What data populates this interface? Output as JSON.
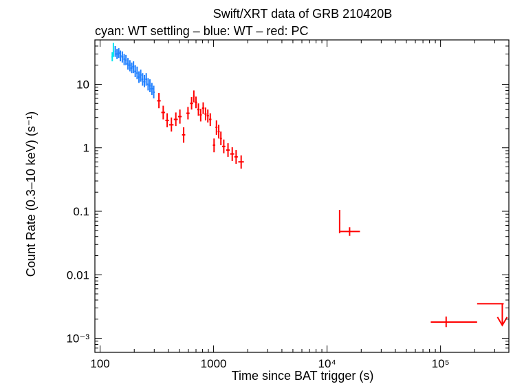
{
  "chart_data": {
    "type": "scatter",
    "title": "Swift/XRT data of GRB 210420B",
    "subtitle": "cyan: WT settling – blue: WT – red: PC",
    "xlabel": "Time since BAT trigger (s)",
    "ylabel": "Count Rate (0.3–10 keV) (s⁻¹)",
    "xscale": "log",
    "yscale": "log",
    "xlim": [
      90,
      400000
    ],
    "ylim": [
      0.0006,
      50
    ],
    "grid": false,
    "x_ticks": [
      {
        "value": 100,
        "label": "100"
      },
      {
        "value": 1000,
        "label": "1000"
      },
      {
        "value": 10000,
        "label": "10⁴"
      },
      {
        "value": 100000,
        "label": "10⁵"
      }
    ],
    "y_ticks": [
      {
        "value": 10,
        "label": "10"
      },
      {
        "value": 1,
        "label": "1"
      },
      {
        "value": 0.1,
        "label": "0.1"
      },
      {
        "value": 0.01,
        "label": "0.01"
      },
      {
        "value": 0.001,
        "label": "10⁻³"
      }
    ],
    "series": [
      {
        "name": "WT settling",
        "color": "#00e5ee",
        "points": [
          {
            "x": 128,
            "y": 27,
            "xlo": 126,
            "xhi": 130,
            "ylo": 23,
            "yhi": 32
          },
          {
            "x": 131,
            "y": 33,
            "xlo": 130,
            "xhi": 133,
            "ylo": 27,
            "yhi": 45
          }
        ]
      },
      {
        "name": "WT",
        "color": "#1e7fff",
        "points": [
          {
            "x": 136,
            "y": 33,
            "xlo": 134,
            "xhi": 138,
            "ylo": 27,
            "yhi": 40
          },
          {
            "x": 141,
            "y": 30,
            "xlo": 138,
            "xhi": 144,
            "ylo": 25,
            "yhi": 36
          },
          {
            "x": 146,
            "y": 31,
            "xlo": 144,
            "xhi": 149,
            "ylo": 26,
            "yhi": 37
          },
          {
            "x": 151,
            "y": 28,
            "xlo": 149,
            "xhi": 154,
            "ylo": 23,
            "yhi": 34
          },
          {
            "x": 157,
            "y": 27,
            "xlo": 154,
            "xhi": 160,
            "ylo": 22,
            "yhi": 33
          },
          {
            "x": 163,
            "y": 25,
            "xlo": 160,
            "xhi": 166,
            "ylo": 20,
            "yhi": 30
          },
          {
            "x": 169,
            "y": 24,
            "xlo": 166,
            "xhi": 172,
            "ylo": 20,
            "yhi": 29
          },
          {
            "x": 176,
            "y": 21,
            "xlo": 172,
            "xhi": 179,
            "ylo": 17,
            "yhi": 26
          },
          {
            "x": 183,
            "y": 20,
            "xlo": 179,
            "xhi": 186,
            "ylo": 16,
            "yhi": 24
          },
          {
            "x": 190,
            "y": 18,
            "xlo": 186,
            "xhi": 193,
            "ylo": 15,
            "yhi": 22
          },
          {
            "x": 197,
            "y": 19,
            "xlo": 193,
            "xhi": 200,
            "ylo": 15,
            "yhi": 23
          },
          {
            "x": 204,
            "y": 16,
            "xlo": 200,
            "xhi": 208,
            "ylo": 13,
            "yhi": 20
          },
          {
            "x": 212,
            "y": 15,
            "xlo": 208,
            "xhi": 216,
            "ylo": 12,
            "yhi": 19
          },
          {
            "x": 220,
            "y": 13,
            "xlo": 216,
            "xhi": 224,
            "ylo": 10.5,
            "yhi": 16
          },
          {
            "x": 228,
            "y": 14,
            "xlo": 224,
            "xhi": 232,
            "ylo": 11,
            "yhi": 17
          },
          {
            "x": 237,
            "y": 12,
            "xlo": 232,
            "xhi": 241,
            "ylo": 9.5,
            "yhi": 15
          },
          {
            "x": 246,
            "y": 11,
            "xlo": 241,
            "xhi": 250,
            "ylo": 9,
            "yhi": 14
          },
          {
            "x": 255,
            "y": 12,
            "xlo": 250,
            "xhi": 260,
            "ylo": 9.5,
            "yhi": 15
          },
          {
            "x": 265,
            "y": 10,
            "xlo": 260,
            "xhi": 270,
            "ylo": 8,
            "yhi": 12.5
          },
          {
            "x": 275,
            "y": 9.5,
            "xlo": 270,
            "xhi": 280,
            "ylo": 7.5,
            "yhi": 12
          },
          {
            "x": 286,
            "y": 8.5,
            "xlo": 280,
            "xhi": 292,
            "ylo": 6.8,
            "yhi": 10.5
          },
          {
            "x": 297,
            "y": 7.5,
            "xlo": 292,
            "xhi": 303,
            "ylo": 6,
            "yhi": 9.5
          }
        ]
      },
      {
        "name": "PC",
        "color": "#ff0000",
        "points": [
          {
            "x": 330,
            "y": 5.5,
            "xlo": 318,
            "xhi": 342,
            "ylo": 4.2,
            "yhi": 7.3
          },
          {
            "x": 360,
            "y": 3.6,
            "xlo": 346,
            "xhi": 374,
            "ylo": 2.8,
            "yhi": 4.6
          },
          {
            "x": 390,
            "y": 2.7,
            "xlo": 376,
            "xhi": 404,
            "ylo": 2.1,
            "yhi": 3.5
          },
          {
            "x": 425,
            "y": 2.3,
            "xlo": 406,
            "xhi": 444,
            "ylo": 1.8,
            "yhi": 3.0
          },
          {
            "x": 465,
            "y": 2.8,
            "xlo": 446,
            "xhi": 484,
            "ylo": 2.2,
            "yhi": 3.6
          },
          {
            "x": 505,
            "y": 3.1,
            "xlo": 486,
            "xhi": 524,
            "ylo": 2.4,
            "yhi": 4.0
          },
          {
            "x": 545,
            "y": 1.6,
            "xlo": 527,
            "xhi": 563,
            "ylo": 1.2,
            "yhi": 2.1
          },
          {
            "x": 595,
            "y": 3.5,
            "xlo": 575,
            "xhi": 615,
            "ylo": 2.8,
            "yhi": 4.4
          },
          {
            "x": 640,
            "y": 5.0,
            "xlo": 620,
            "xhi": 660,
            "ylo": 4.0,
            "yhi": 6.3
          },
          {
            "x": 670,
            "y": 6.5,
            "xlo": 660,
            "xhi": 680,
            "ylo": 5.2,
            "yhi": 8.0
          },
          {
            "x": 700,
            "y": 5.2,
            "xlo": 684,
            "xhi": 716,
            "ylo": 4.2,
            "yhi": 6.4
          },
          {
            "x": 735,
            "y": 4.0,
            "xlo": 718,
            "xhi": 752,
            "ylo": 3.2,
            "yhi": 5.0
          },
          {
            "x": 770,
            "y": 3.3,
            "xlo": 753,
            "xhi": 787,
            "ylo": 2.6,
            "yhi": 4.1
          },
          {
            "x": 810,
            "y": 4.2,
            "xlo": 790,
            "xhi": 830,
            "ylo": 3.4,
            "yhi": 5.2
          },
          {
            "x": 850,
            "y": 3.4,
            "xlo": 832,
            "xhi": 868,
            "ylo": 2.7,
            "yhi": 4.3
          },
          {
            "x": 890,
            "y": 3.2,
            "xlo": 870,
            "xhi": 910,
            "ylo": 2.5,
            "yhi": 4.0
          },
          {
            "x": 935,
            "y": 2.8,
            "xlo": 912,
            "xhi": 958,
            "ylo": 2.2,
            "yhi": 3.5
          },
          {
            "x": 1010,
            "y": 1.1,
            "xlo": 985,
            "xhi": 1035,
            "ylo": 0.85,
            "yhi": 1.4
          },
          {
            "x": 1060,
            "y": 2.1,
            "xlo": 1038,
            "xhi": 1082,
            "ylo": 1.6,
            "yhi": 2.7
          },
          {
            "x": 1110,
            "y": 1.8,
            "xlo": 1088,
            "xhi": 1132,
            "ylo": 1.4,
            "yhi": 2.3
          },
          {
            "x": 1160,
            "y": 1.4,
            "xlo": 1136,
            "xhi": 1184,
            "ylo": 1.1,
            "yhi": 1.8
          },
          {
            "x": 1230,
            "y": 1.05,
            "xlo": 1190,
            "xhi": 1270,
            "ylo": 0.82,
            "yhi": 1.35
          },
          {
            "x": 1340,
            "y": 0.92,
            "xlo": 1290,
            "xhi": 1390,
            "ylo": 0.72,
            "yhi": 1.18
          },
          {
            "x": 1460,
            "y": 0.8,
            "xlo": 1400,
            "xhi": 1520,
            "ylo": 0.62,
            "yhi": 1.02
          },
          {
            "x": 1580,
            "y": 0.72,
            "xlo": 1525,
            "xhi": 1635,
            "ylo": 0.56,
            "yhi": 0.92
          },
          {
            "x": 1750,
            "y": 0.6,
            "xlo": 1650,
            "xhi": 1850,
            "ylo": 0.47,
            "yhi": 0.76
          },
          {
            "x": 12900,
            "y": 0.065,
            "xlo": 12750,
            "xhi": 13050,
            "ylo": 0.045,
            "yhi": 0.105
          },
          {
            "x": 15800,
            "y": 0.048,
            "xlo": 13100,
            "xhi": 19500,
            "ylo": 0.041,
            "yhi": 0.056
          },
          {
            "x": 112000,
            "y": 0.0018,
            "xlo": 82000,
            "xhi": 210000,
            "ylo": 0.0015,
            "yhi": 0.0022
          }
        ],
        "upper_limits": [
          {
            "x": 350000,
            "y": 0.0035,
            "xlo": 210000,
            "xhi": 360000,
            "arrow_to": 0.0016
          }
        ]
      }
    ]
  }
}
